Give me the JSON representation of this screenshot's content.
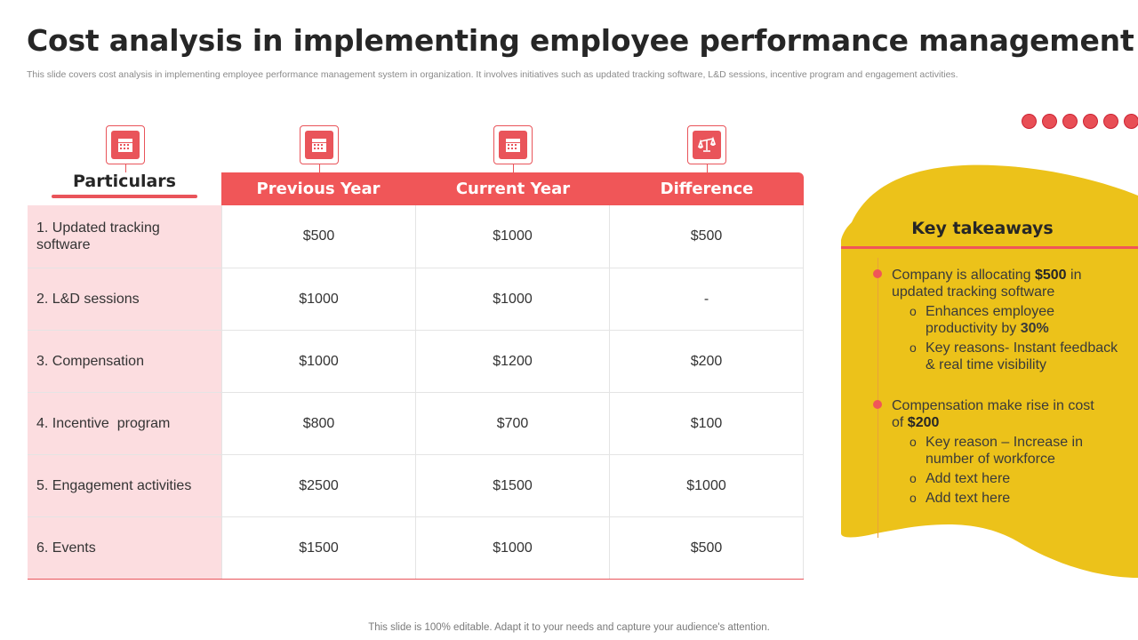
{
  "title": "Cost analysis in implementing employee performance management",
  "subtitle": "This slide covers cost analysis in implementing employee performance management system in organization. It involves initiatives such as updated tracking software, L&D sessions, incentive program and engagement activities.",
  "colors": {
    "accent": "#f05658",
    "label_bg": "#fcdde0",
    "panel": "#ecc21a"
  },
  "icons": [
    "calendar-icon",
    "calendar-icon",
    "calendar-icon",
    "scale-icon"
  ],
  "table": {
    "particulars_header": "Particulars",
    "headers": [
      "Previous Year",
      "Current Year",
      "Difference"
    ],
    "rows": [
      {
        "label": "1. Updated tracking software",
        "values": [
          "$500",
          "$1000",
          "$500"
        ]
      },
      {
        "label": "2. L&D sessions",
        "values": [
          "$1000",
          "$1000",
          "-"
        ]
      },
      {
        "label": "3. Compensation",
        "values": [
          "$1000",
          "$1200",
          "$200"
        ]
      },
      {
        "label": "4. Incentive  program",
        "values": [
          "$800",
          "$700",
          "$100"
        ]
      },
      {
        "label": "5. Engagement activities",
        "values": [
          "$2500",
          "$1500",
          "$1000"
        ]
      },
      {
        "label": "6. Events",
        "values": [
          "$1500",
          "$1000",
          "$500"
        ]
      }
    ]
  },
  "key_takeaways": {
    "title": "Key takeaways",
    "point1": {
      "pre": "Company is allocating ",
      "bold": "$500",
      "post": " in updated tracking software"
    },
    "point1_subs": [
      {
        "pre": "Enhances employee productivity by ",
        "bold": "30%"
      },
      {
        "pre": "Key reasons- Instant feedback & real time visibility",
        "bold": ""
      }
    ],
    "point2": {
      "pre": "Compensation make rise in cost of ",
      "bold": "$200",
      "post": ""
    },
    "point2_subs": [
      {
        "pre": "Key reason – Increase  in number of workforce",
        "bold": ""
      },
      {
        "pre": "Add text here",
        "bold": ""
      },
      {
        "pre": "Add text here",
        "bold": ""
      }
    ]
  },
  "footer": "This slide is 100% editable. Adapt it to your needs and capture your audience's attention."
}
